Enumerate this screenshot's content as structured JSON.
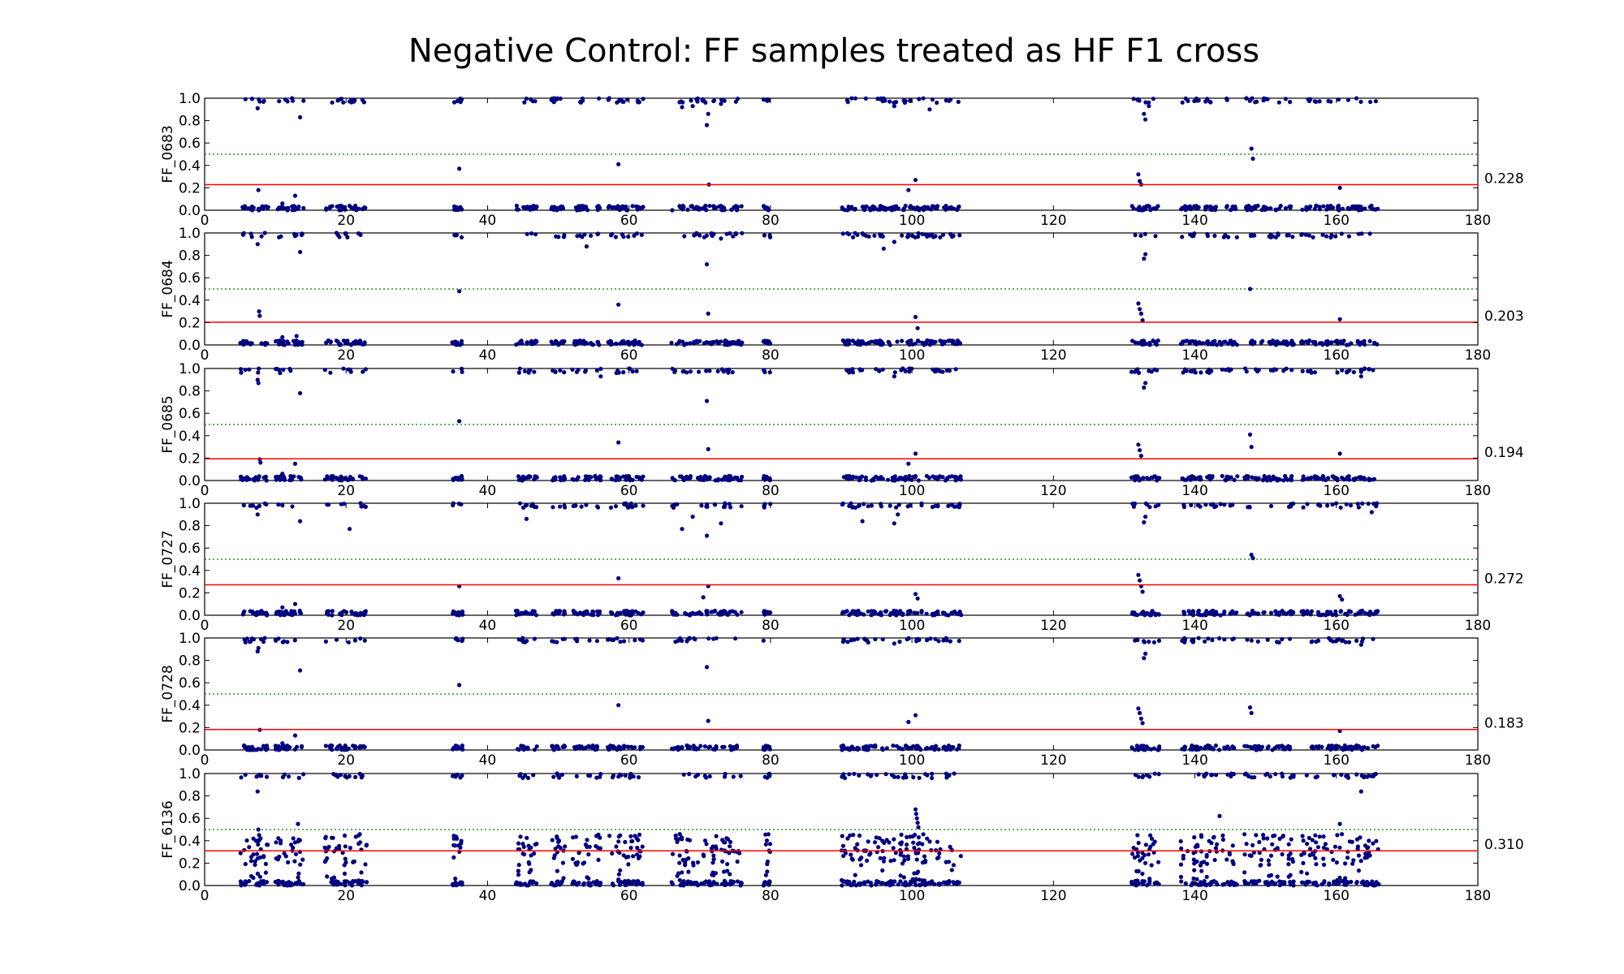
{
  "chart_data": {
    "type": "scatter",
    "title": "Negative Control: FF samples treated as HF F1 cross",
    "xlim": [
      0,
      180
    ],
    "ylim": [
      0.0,
      1.0
    ],
    "x_ticks": [
      "0",
      "20",
      "40",
      "60",
      "80",
      "100",
      "120",
      "140",
      "160",
      "180"
    ],
    "y_ticks": [
      "0.0",
      "0.2",
      "0.4",
      "0.6",
      "0.8",
      "1.0"
    ],
    "x_tick_values": [
      0,
      20,
      40,
      60,
      80,
      100,
      120,
      140,
      160,
      180
    ],
    "y_tick_values": [
      0.0,
      0.2,
      0.4,
      0.6,
      0.8,
      1.0
    ],
    "reference_line": 0.5,
    "colors": {
      "points": "#000080",
      "threshold": "#ff0000",
      "reference": "#008000"
    },
    "grid": false,
    "panels": [
      {
        "ylabel": "FF_0683",
        "threshold": 0.228,
        "threshold_label": "0.228",
        "outliers": [
          [
            7.5,
            0.91
          ],
          [
            7.6,
            0.18
          ],
          [
            7.8,
            0.97
          ],
          [
            13.5,
            0.83
          ],
          [
            11,
            0.06
          ],
          [
            12.8,
            0.13
          ],
          [
            36,
            0.37
          ],
          [
            58.5,
            0.41
          ],
          [
            67.5,
            0.92
          ],
          [
            69,
            0.93
          ],
          [
            71,
            0.76
          ],
          [
            71.2,
            0.86
          ],
          [
            71.3,
            0.23
          ],
          [
            73,
            0.95
          ],
          [
            97.5,
            0.93
          ],
          [
            99,
            0.96
          ],
          [
            99.5,
            0.18
          ],
          [
            100.5,
            0.27
          ],
          [
            102.5,
            0.9
          ],
          [
            132,
            0.32
          ],
          [
            132.2,
            0.26
          ],
          [
            132.4,
            0.23
          ],
          [
            132.8,
            0.86
          ],
          [
            133,
            0.81
          ],
          [
            133.5,
            0.93
          ],
          [
            148,
            0.55
          ],
          [
            148.2,
            0.46
          ],
          [
            160.5,
            0.2
          ]
        ]
      },
      {
        "ylabel": "FF_0684",
        "threshold": 0.203,
        "threshold_label": "0.203",
        "outliers": [
          [
            7.5,
            0.9
          ],
          [
            7.7,
            0.3
          ],
          [
            7.8,
            0.26
          ],
          [
            11,
            0.07
          ],
          [
            13,
            0.08
          ],
          [
            13.5,
            0.83
          ],
          [
            17.5,
            0.04
          ],
          [
            36,
            0.48
          ],
          [
            54,
            0.88
          ],
          [
            58.5,
            0.36
          ],
          [
            71,
            0.72
          ],
          [
            71.2,
            0.28
          ],
          [
            73,
            0.95
          ],
          [
            96,
            0.86
          ],
          [
            97.5,
            0.92
          ],
          [
            100.5,
            0.25
          ],
          [
            100.8,
            0.15
          ],
          [
            132,
            0.37
          ],
          [
            132.2,
            0.32
          ],
          [
            132.4,
            0.28
          ],
          [
            132.6,
            0.22
          ],
          [
            132.8,
            0.77
          ],
          [
            133,
            0.81
          ],
          [
            147.8,
            0.5
          ],
          [
            160.5,
            0.23
          ]
        ]
      },
      {
        "ylabel": "FF_0685",
        "threshold": 0.194,
        "threshold_label": "0.194",
        "outliers": [
          [
            7.5,
            0.9
          ],
          [
            7.6,
            0.87
          ],
          [
            7.8,
            0.19
          ],
          [
            7.9,
            0.16
          ],
          [
            11,
            0.06
          ],
          [
            12.8,
            0.15
          ],
          [
            13.5,
            0.78
          ],
          [
            36,
            0.53
          ],
          [
            56,
            0.93
          ],
          [
            58.5,
            0.34
          ],
          [
            71,
            0.71
          ],
          [
            71.2,
            0.28
          ],
          [
            97.5,
            0.93
          ],
          [
            99.5,
            0.15
          ],
          [
            100.5,
            0.24
          ],
          [
            132,
            0.32
          ],
          [
            132.2,
            0.27
          ],
          [
            132.4,
            0.22
          ],
          [
            132.8,
            0.83
          ],
          [
            133,
            0.87
          ],
          [
            147.8,
            0.41
          ],
          [
            148,
            0.3
          ],
          [
            160.5,
            0.24
          ],
          [
            163.5,
            0.93
          ]
        ]
      },
      {
        "ylabel": "FF_0727",
        "threshold": 0.272,
        "threshold_label": "0.272",
        "outliers": [
          [
            7.5,
            0.9
          ],
          [
            11,
            0.07
          ],
          [
            12.8,
            0.1
          ],
          [
            13.5,
            0.84
          ],
          [
            20.5,
            0.77
          ],
          [
            36,
            0.26
          ],
          [
            45.5,
            0.86
          ],
          [
            58.5,
            0.33
          ],
          [
            67.5,
            0.77
          ],
          [
            69,
            0.88
          ],
          [
            70.5,
            0.16
          ],
          [
            71,
            0.71
          ],
          [
            71.2,
            0.26
          ],
          [
            73,
            0.82
          ],
          [
            93,
            0.84
          ],
          [
            97.5,
            0.82
          ],
          [
            98,
            0.9
          ],
          [
            100.5,
            0.19
          ],
          [
            100.8,
            0.15
          ],
          [
            132,
            0.36
          ],
          [
            132.2,
            0.31
          ],
          [
            132.4,
            0.26
          ],
          [
            132.6,
            0.21
          ],
          [
            132.8,
            0.83
          ],
          [
            133,
            0.88
          ],
          [
            148,
            0.54
          ],
          [
            148.2,
            0.51
          ],
          [
            160.5,
            0.17
          ],
          [
            160.8,
            0.14
          ],
          [
            165,
            0.92
          ]
        ]
      },
      {
        "ylabel": "FF_0728",
        "threshold": 0.183,
        "threshold_label": "0.183",
        "outliers": [
          [
            7.5,
            0.88
          ],
          [
            7.6,
            0.91
          ],
          [
            7.8,
            0.18
          ],
          [
            11,
            0.06
          ],
          [
            12.8,
            0.13
          ],
          [
            13.5,
            0.71
          ],
          [
            36,
            0.58
          ],
          [
            58.5,
            0.4
          ],
          [
            71,
            0.74
          ],
          [
            71.2,
            0.26
          ],
          [
            97.5,
            0.95
          ],
          [
            99.5,
            0.25
          ],
          [
            100.5,
            0.31
          ],
          [
            132,
            0.37
          ],
          [
            132.2,
            0.33
          ],
          [
            132.4,
            0.28
          ],
          [
            132.6,
            0.24
          ],
          [
            132.8,
            0.82
          ],
          [
            133,
            0.86
          ],
          [
            147.8,
            0.38
          ],
          [
            148,
            0.33
          ],
          [
            160.5,
            0.17
          ],
          [
            163.5,
            0.94
          ]
        ]
      },
      {
        "ylabel": "FF_6136",
        "threshold": 0.31,
        "threshold_label": "0.310",
        "outliers": [
          [
            7.5,
            0.84
          ],
          [
            7.6,
            0.5
          ],
          [
            7.7,
            0.45
          ],
          [
            7.9,
            0.42
          ],
          [
            13.2,
            0.55
          ],
          [
            100.5,
            0.68
          ],
          [
            100.6,
            0.64
          ],
          [
            100.7,
            0.6
          ],
          [
            100.8,
            0.56
          ],
          [
            100.9,
            0.52
          ],
          [
            143.5,
            0.62
          ],
          [
            160.5,
            0.55
          ],
          [
            163.5,
            0.84
          ]
        ]
      }
    ]
  }
}
